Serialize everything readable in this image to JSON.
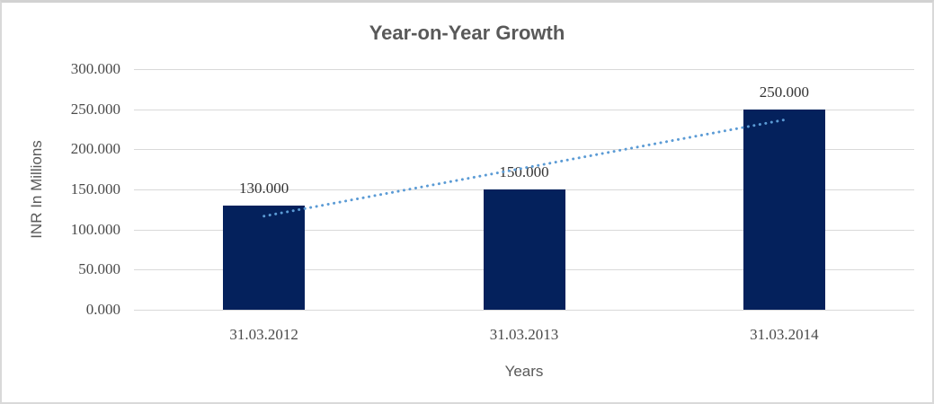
{
  "chart_data": {
    "type": "bar",
    "title": "Year-on-Year Growth",
    "xlabel": "Years",
    "ylabel": "INR In Millions",
    "categories": [
      "31.03.2012",
      "31.03.2013",
      "31.03.2014"
    ],
    "values": [
      130,
      150,
      250
    ],
    "data_labels": [
      "130.000",
      "150.000",
      "250.000"
    ],
    "ylim": [
      0,
      300
    ],
    "yticks": [
      {
        "value": 300,
        "label": "300.000"
      },
      {
        "value": 250,
        "label": "250.000"
      },
      {
        "value": 200,
        "label": "200.000"
      },
      {
        "value": 150,
        "label": "150.000"
      },
      {
        "value": 100,
        "label": "100.000"
      },
      {
        "value": 50,
        "label": "50.000"
      },
      {
        "value": 0,
        "label": "0.000"
      }
    ],
    "grid": true,
    "legend": "none",
    "bar_color": "#04215c",
    "trendline": {
      "type": "linear",
      "style": "dotted",
      "color": "#5b9bd5",
      "start_value": 116.7,
      "end_value": 236.7
    }
  },
  "styles": {
    "title_color": "#595959",
    "axis_label_color": "#595959",
    "tick_color": "#4a4a4a",
    "data_label_color": "#333333",
    "grid_color": "#d9d9d9",
    "frame_border_color": "#d9d9d9",
    "background": "#ffffff"
  }
}
